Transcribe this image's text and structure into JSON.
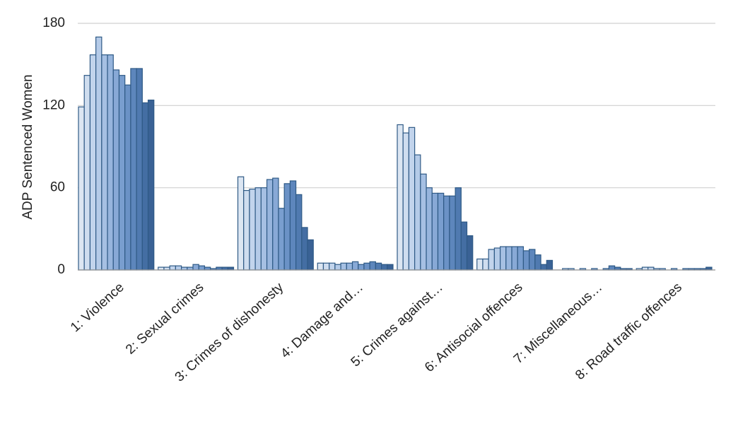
{
  "chart_data": {
    "type": "bar",
    "y_label": "ADP Sentenced Women",
    "categories": [
      "1: Violence",
      "2: Sexual crimes",
      "3: Crimes of dishonesty",
      "4: Damage and…",
      "5: Crimes against…",
      "6: Antisocial offences",
      "7: Miscellaneous…",
      "8: Road traffic offences"
    ],
    "series": [
      {
        "color": "#dce6f2",
        "values": [
          119,
          2,
          68,
          5,
          106,
          8,
          0,
          1
        ]
      },
      {
        "color": "#cfddef",
        "values": [
          142,
          2,
          58,
          5,
          100,
          8,
          1,
          2
        ]
      },
      {
        "color": "#c2d4ec",
        "values": [
          157,
          3,
          59,
          5,
          104,
          15,
          1,
          2
        ]
      },
      {
        "color": "#b5cbe8",
        "values": [
          170,
          3,
          60,
          4,
          84,
          16,
          0,
          1
        ]
      },
      {
        "color": "#a6c0e3",
        "values": [
          157,
          2,
          60,
          5,
          70,
          17,
          1,
          1
        ]
      },
      {
        "color": "#97b5dd",
        "values": [
          157,
          2,
          66,
          5,
          60,
          17,
          0,
          0
        ]
      },
      {
        "color": "#88a9d6",
        "values": [
          146,
          4,
          67,
          6,
          56,
          17,
          1,
          1
        ]
      },
      {
        "color": "#799ecf",
        "values": [
          142,
          3,
          45,
          4,
          56,
          17,
          0,
          0
        ]
      },
      {
        "color": "#6b92c6",
        "values": [
          135,
          2,
          63,
          5,
          54,
          14,
          1,
          1
        ]
      },
      {
        "color": "#5d86bc",
        "values": [
          147,
          1,
          65,
          6,
          54,
          15,
          3,
          1
        ]
      },
      {
        "color": "#507ab0",
        "values": [
          147,
          2,
          55,
          5,
          60,
          11,
          2,
          1
        ]
      },
      {
        "color": "#446ea3",
        "values": [
          122,
          2,
          31,
          4,
          35,
          4,
          1,
          1
        ]
      },
      {
        "color": "#3a6295",
        "values": [
          124,
          2,
          22,
          4,
          25,
          7,
          1,
          2
        ]
      }
    ],
    "ylim": [
      0,
      180
    ],
    "yticks": [
      0,
      60,
      120,
      180
    ],
    "grid": true
  }
}
